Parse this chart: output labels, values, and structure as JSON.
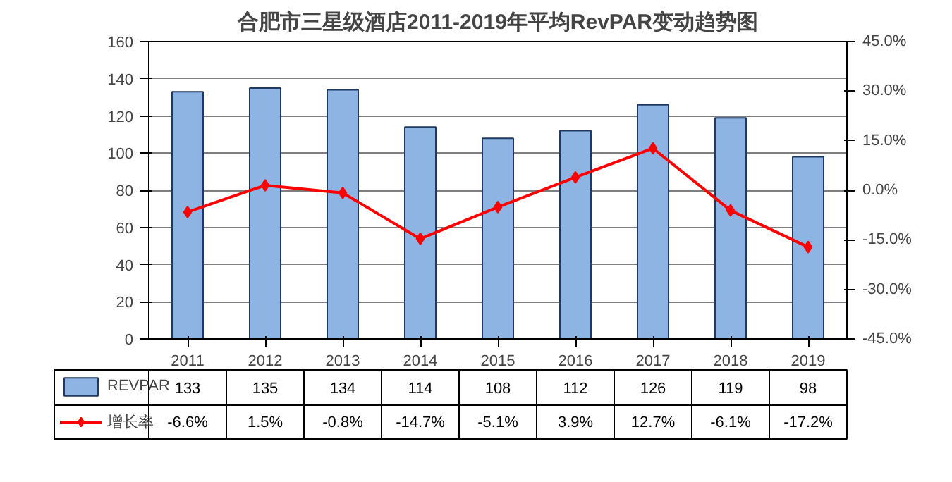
{
  "chart_data": {
    "type": "bar",
    "title": "合肥市三星级酒店2011-2019年平均RevPAR变动趋势图",
    "categories": [
      "2011",
      "2012",
      "2013",
      "2014",
      "2015",
      "2016",
      "2017",
      "2018",
      "2019"
    ],
    "series": [
      {
        "name": "REVPAR",
        "color": "#8db4e2",
        "values": [
          133,
          135,
          134,
          114,
          108,
          112,
          126,
          119,
          98
        ],
        "value_labels": [
          "133",
          "135",
          "134",
          "114",
          "108",
          "112",
          "126",
          "119",
          "98"
        ]
      },
      {
        "name": "增长率",
        "type": "line",
        "axis": "y2",
        "color": "#ff0000",
        "marker": "diamond",
        "values": [
          -6.6,
          1.5,
          -0.8,
          -14.7,
          -5.1,
          3.9,
          12.7,
          -6.1,
          -17.2
        ],
        "value_labels": [
          "-6.6%",
          "1.5%",
          "-0.8%",
          "-14.7%",
          "-5.1%",
          "3.9%",
          "12.7%",
          "-6.1%",
          "-17.2%"
        ]
      }
    ],
    "ylim": [
      0,
      160
    ],
    "yticks": [
      0,
      20,
      40,
      60,
      80,
      100,
      120,
      140,
      160
    ],
    "y2lim": [
      -45,
      45
    ],
    "y2ticks": [
      {
        "value": -45,
        "label": "-45.0%"
      },
      {
        "value": -30,
        "label": "-30.0%"
      },
      {
        "value": -15,
        "label": "-15.0%"
      },
      {
        "value": 0,
        "label": "0.0%"
      },
      {
        "value": 15,
        "label": "15.0%"
      },
      {
        "value": 30,
        "label": "30.0%"
      },
      {
        "value": 45,
        "label": "45.0%"
      }
    ],
    "grid": "y",
    "legend": "bottom left"
  }
}
